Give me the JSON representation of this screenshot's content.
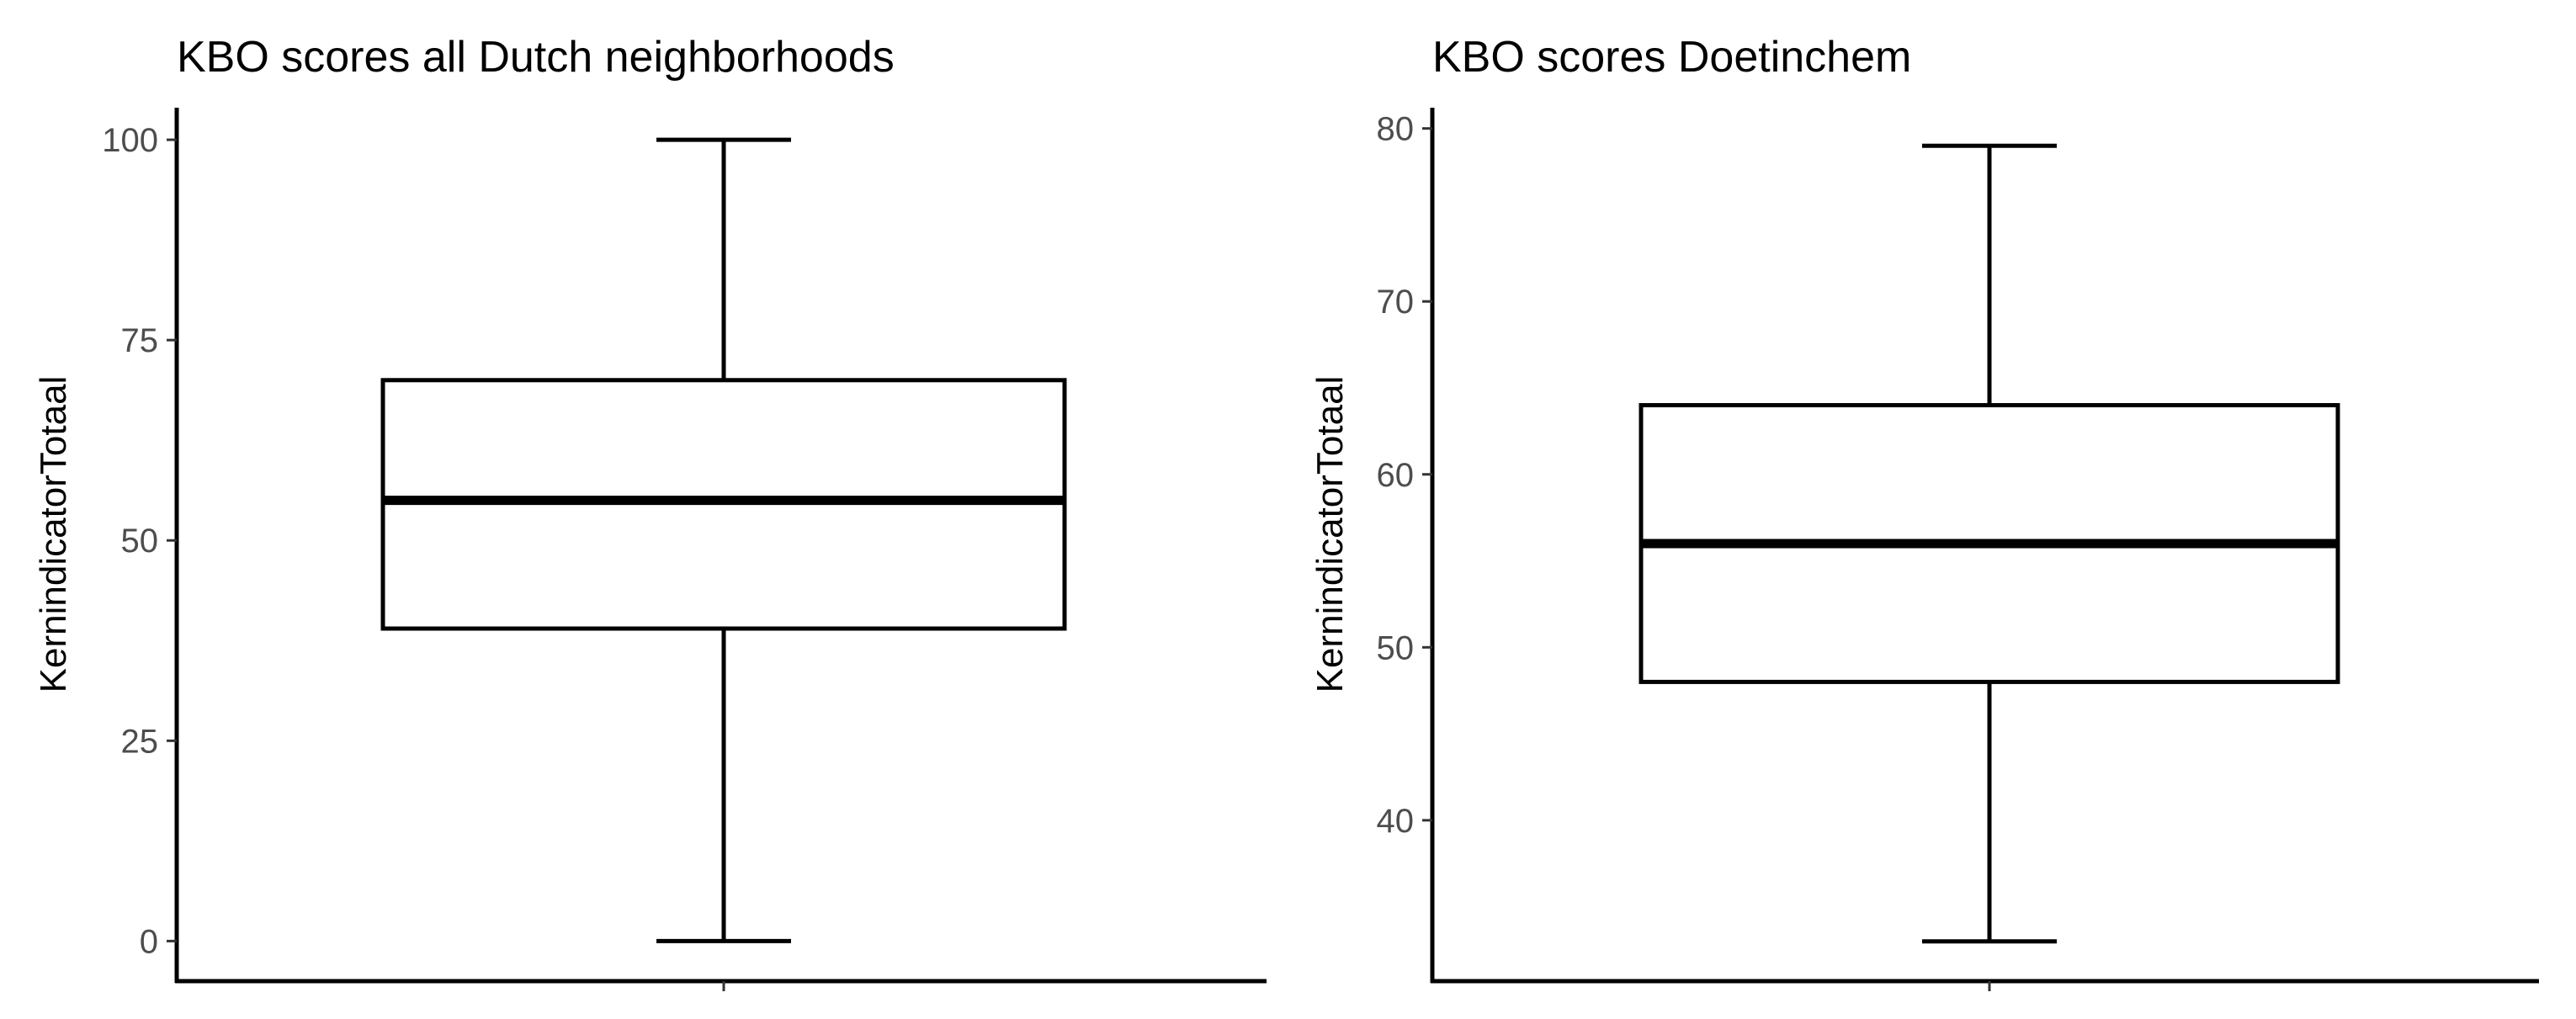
{
  "chart_data": [
    {
      "type": "boxplot",
      "title": "KBO scores all Dutch neighborhoods",
      "xlabel": "",
      "ylabel": "KernindicatorTotaal",
      "ylim": [
        -5,
        104
      ],
      "yticks": [
        0,
        25,
        50,
        75,
        100
      ],
      "stats": {
        "min": 0,
        "q1": 39,
        "median": 55,
        "q3": 70,
        "max": 100
      },
      "grid": false,
      "legend": "none"
    },
    {
      "type": "boxplot",
      "title": "KBO scores Doetinchem",
      "xlabel": "",
      "ylabel": "KernindicatorTotaal",
      "ylim": [
        30.7,
        81.2
      ],
      "yticks": [
        40,
        50,
        60,
        70,
        80
      ],
      "stats": {
        "min": 33,
        "q1": 48,
        "median": 56,
        "q3": 64,
        "max": 79
      },
      "grid": false,
      "legend": "none"
    }
  ]
}
